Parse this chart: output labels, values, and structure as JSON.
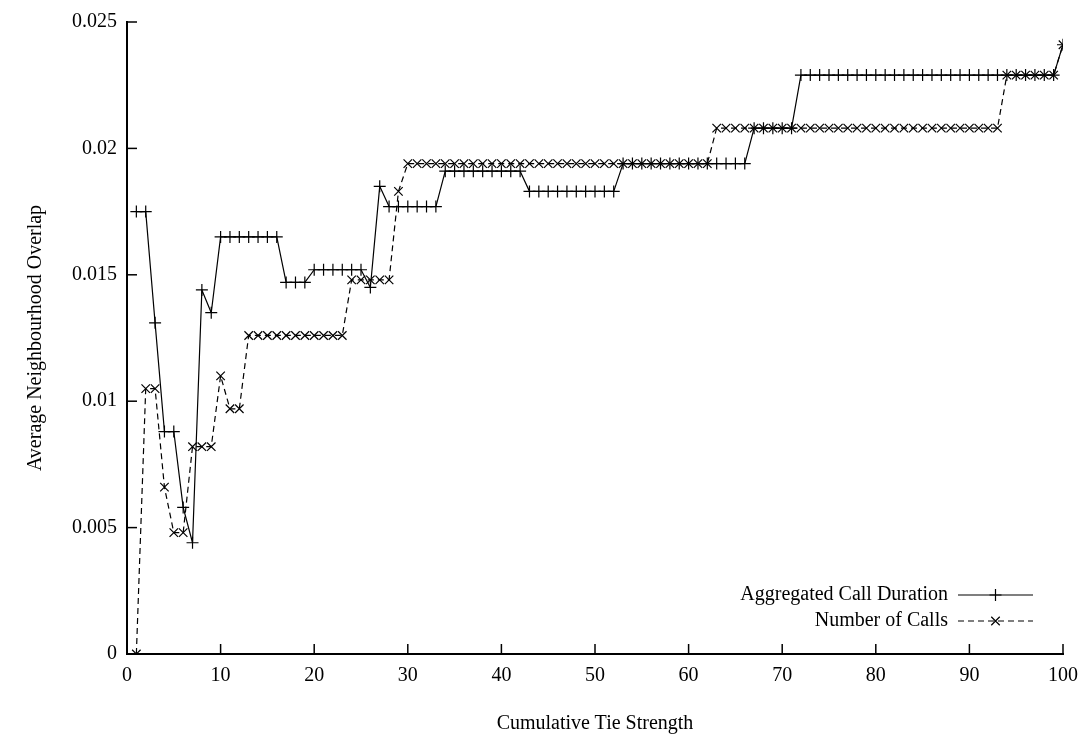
{
  "chart_data": {
    "type": "line",
    "xlabel": "Cumulative Tie Strength",
    "ylabel": "Average Neighbourhood Overlap",
    "x": [
      1,
      2,
      3,
      4,
      5,
      6,
      7,
      8,
      9,
      10,
      11,
      12,
      13,
      14,
      15,
      16,
      17,
      18,
      19,
      20,
      21,
      22,
      23,
      24,
      25,
      26,
      27,
      28,
      29,
      30,
      31,
      32,
      33,
      34,
      35,
      36,
      37,
      38,
      39,
      40,
      41,
      42,
      43,
      44,
      45,
      46,
      47,
      48,
      49,
      50,
      51,
      52,
      53,
      54,
      55,
      56,
      57,
      58,
      59,
      60,
      61,
      62,
      63,
      64,
      65,
      66,
      67,
      68,
      69,
      70,
      71,
      72,
      73,
      74,
      75,
      76,
      77,
      78,
      79,
      80,
      81,
      82,
      83,
      84,
      85,
      86,
      87,
      88,
      89,
      90,
      91,
      92,
      93,
      94,
      95,
      96,
      97,
      98,
      99,
      100
    ],
    "series": [
      {
        "name": "Aggregated Call Duration",
        "color": "#000000",
        "marker": "cross",
        "line_style": "solid",
        "values": [
          0.0175,
          0.0175,
          0.0131,
          0.0088,
          0.0088,
          0.0058,
          0.0044,
          0.0144,
          0.0135,
          0.0165,
          0.0165,
          0.0165,
          0.0165,
          0.0165,
          0.0165,
          0.0165,
          0.0147,
          0.0147,
          0.0147,
          0.0152,
          0.0152,
          0.0152,
          0.0152,
          0.0152,
          0.0152,
          0.0145,
          0.0185,
          0.0177,
          0.0177,
          0.0177,
          0.0177,
          0.0177,
          0.0177,
          0.0191,
          0.0191,
          0.0191,
          0.0191,
          0.0191,
          0.0191,
          0.0191,
          0.0191,
          0.0191,
          0.0183,
          0.0183,
          0.0183,
          0.0183,
          0.0183,
          0.0183,
          0.0183,
          0.0183,
          0.0183,
          0.0183,
          0.0194,
          0.0194,
          0.0194,
          0.0194,
          0.0194,
          0.0194,
          0.0194,
          0.0194,
          0.0194,
          0.0194,
          0.0194,
          0.0194,
          0.0194,
          0.0194,
          0.0208,
          0.0208,
          0.0208,
          0.0208,
          0.0208,
          0.0229,
          0.0229,
          0.0229,
          0.0229,
          0.0229,
          0.0229,
          0.0229,
          0.0229,
          0.0229,
          0.0229,
          0.0229,
          0.0229,
          0.0229,
          0.0229,
          0.0229,
          0.0229,
          0.0229,
          0.0229,
          0.0229,
          0.0229,
          0.0229,
          0.0229,
          0.0229,
          0.0229,
          0.0229,
          0.0229,
          0.0229,
          0.0229,
          0.0241
        ]
      },
      {
        "name": "Number of Calls",
        "color": "#000000",
        "marker": "x",
        "line_style": "dashed",
        "values": [
          0,
          0.0105,
          0.0105,
          0.0066,
          0.0048,
          0.0048,
          0.0082,
          0.0082,
          0.0082,
          0.011,
          0.0097,
          0.0097,
          0.0126,
          0.0126,
          0.0126,
          0.0126,
          0.0126,
          0.0126,
          0.0126,
          0.0126,
          0.0126,
          0.0126,
          0.0126,
          0.0148,
          0.0148,
          0.0148,
          0.0148,
          0.0148,
          0.0183,
          0.0194,
          0.0194,
          0.0194,
          0.0194,
          0.0194,
          0.0194,
          0.0194,
          0.0194,
          0.0194,
          0.0194,
          0.0194,
          0.0194,
          0.0194,
          0.0194,
          0.0194,
          0.0194,
          0.0194,
          0.0194,
          0.0194,
          0.0194,
          0.0194,
          0.0194,
          0.0194,
          0.0194,
          0.0194,
          0.0194,
          0.0194,
          0.0194,
          0.0194,
          0.0194,
          0.0194,
          0.0194,
          0.0194,
          0.0208,
          0.0208,
          0.0208,
          0.0208,
          0.0208,
          0.0208,
          0.0208,
          0.0208,
          0.0208,
          0.0208,
          0.0208,
          0.0208,
          0.0208,
          0.0208,
          0.0208,
          0.0208,
          0.0208,
          0.0208,
          0.0208,
          0.0208,
          0.0208,
          0.0208,
          0.0208,
          0.0208,
          0.0208,
          0.0208,
          0.0208,
          0.0208,
          0.0208,
          0.0208,
          0.0208,
          0.0229,
          0.0229,
          0.0229,
          0.0229,
          0.0229,
          0.0229,
          0.0241
        ]
      }
    ],
    "xlim": [
      0,
      100
    ],
    "xticks": [
      0,
      10,
      20,
      30,
      40,
      50,
      60,
      70,
      80,
      90,
      100
    ],
    "ylim": [
      0,
      0.025
    ],
    "yticks": [
      0,
      0.005,
      0.01,
      0.015,
      0.02,
      0.025
    ],
    "grid": false,
    "legend": "bottom right"
  }
}
